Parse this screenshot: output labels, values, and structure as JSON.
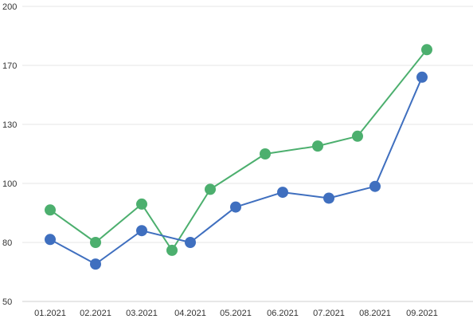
{
  "chart_data": {
    "type": "line",
    "title": "",
    "xlabel": "",
    "ylabel": "",
    "categories": [
      "01.2021",
      "02.2021",
      "03.2021",
      "04.2021",
      "05.2021",
      "06.2021",
      "07.2021",
      "08.2021",
      "09.2021"
    ],
    "y_ticks": [
      50,
      80,
      100,
      130,
      170,
      200
    ],
    "grid": true,
    "series": [
      {
        "color": "#4caf6e",
        "points": [
          {
            "x": "01.2021",
            "y": 91
          },
          {
            "x": "02.2021",
            "y": 80
          },
          {
            "x": "03.2021",
            "y": 93
          },
          {
            "x": "04.2021",
            "y": 76
          },
          {
            "x": "04.2021",
            "y": 98
          },
          {
            "x": "05.2021",
            "y": 115
          },
          {
            "x": "06.2021",
            "y": 119
          },
          {
            "x": "07.2021",
            "y": 124
          },
          {
            "x": "08.2021",
            "y": 178
          }
        ]
      },
      {
        "color": "#3f6fbf",
        "points": [
          {
            "x": "01.2021",
            "y": 81
          },
          {
            "x": "02.2021",
            "y": 69
          },
          {
            "x": "03.2021",
            "y": 84
          },
          {
            "x": "04.2021",
            "y": 80
          },
          {
            "x": "05.2021",
            "y": 92
          },
          {
            "x": "06.2021",
            "y": 97
          },
          {
            "x": "07.2021",
            "y": 95
          },
          {
            "x": "08.2021",
            "y": 99
          },
          {
            "x": "09.2021",
            "y": 162
          }
        ]
      }
    ]
  }
}
